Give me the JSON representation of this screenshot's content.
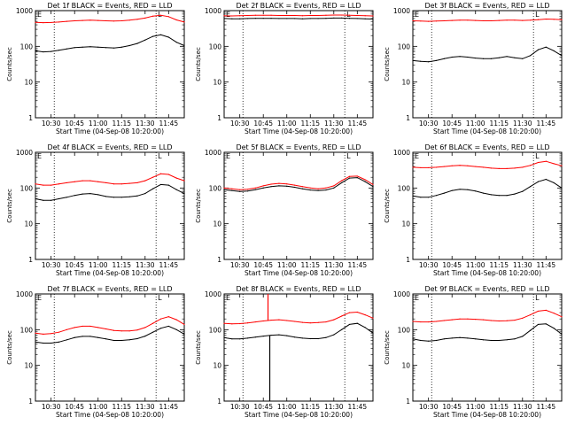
{
  "colors": {
    "events": "#000000",
    "lld": "#ff0000",
    "axis": "#000000"
  },
  "chart_data": [
    {
      "type": "line",
      "title": "Det 1f BLACK = Events, RED = LLD",
      "xlabel": "Start Time (04-Sep-08 10:20:00)",
      "ylabel": "Counts/sec",
      "x": [
        "10:20",
        "10:25",
        "10:30",
        "10:35",
        "10:40",
        "10:45",
        "10:50",
        "10:55",
        "11:00",
        "11:05",
        "11:10",
        "11:15",
        "11:20",
        "11:25",
        "11:30",
        "11:35",
        "11:40",
        "11:45",
        "11:50",
        "11:55"
      ],
      "x_ticks": [
        "10:30",
        "10:45",
        "11:00",
        "11:15",
        "11:30",
        "11:45"
      ],
      "y_scale": "log",
      "ylim": [
        1,
        1000
      ],
      "y_ticks": [
        "1",
        "10",
        "100",
        "1000"
      ],
      "vlines": [
        "10:32",
        "11:37"
      ],
      "legend": "E, L markers top",
      "series": [
        {
          "name": "BLACK = Events",
          "values": [
            75,
            70,
            72,
            78,
            85,
            92,
            95,
            98,
            95,
            92,
            90,
            95,
            105,
            120,
            150,
            190,
            210,
            180,
            130,
            105
          ]
        },
        {
          "name": "RED = LLD",
          "values": [
            470,
            460,
            465,
            480,
            500,
            520,
            530,
            540,
            530,
            520,
            510,
            520,
            540,
            570,
            620,
            700,
            740,
            680,
            550,
            480
          ]
        }
      ]
    },
    {
      "type": "line",
      "title": "Det 2f BLACK = Events, RED = LLD",
      "xlabel": "Start Time (04-Sep-08 10:20:00)",
      "ylabel": "Counts/sec",
      "x": [
        "10:20",
        "10:25",
        "10:30",
        "10:35",
        "10:40",
        "10:45",
        "10:50",
        "10:55",
        "11:00",
        "11:05",
        "11:10",
        "11:15",
        "11:20",
        "11:25",
        "11:30",
        "11:35",
        "11:40",
        "11:45",
        "11:50",
        "11:55"
      ],
      "x_ticks": [
        "10:30",
        "10:45",
        "11:00",
        "11:15",
        "11:30",
        "11:45"
      ],
      "y_scale": "log",
      "ylim": [
        1,
        1000
      ],
      "y_ticks": [
        "1",
        "10",
        "100",
        "1000"
      ],
      "vlines": [
        "10:32",
        "11:37"
      ],
      "legend": "E, L markers top",
      "series": [
        {
          "name": "BLACK = Events",
          "values": [
            600,
            590,
            590,
            600,
            610,
            610,
            610,
            600,
            600,
            600,
            590,
            600,
            600,
            610,
            620,
            620,
            610,
            600,
            590,
            580
          ]
        },
        {
          "name": "RED = LLD",
          "values": [
            720,
            710,
            720,
            730,
            740,
            740,
            740,
            730,
            730,
            730,
            720,
            730,
            730,
            740,
            750,
            750,
            740,
            730,
            720,
            710
          ]
        }
      ]
    },
    {
      "type": "line",
      "title": "Det 3f BLACK = Events, RED = LLD",
      "xlabel": "Start Time (04-Sep-08 10:20:00)",
      "ylabel": "Counts/sec",
      "x": [
        "10:20",
        "10:25",
        "10:30",
        "10:35",
        "10:40",
        "10:45",
        "10:50",
        "10:55",
        "11:00",
        "11:05",
        "11:10",
        "11:15",
        "11:20",
        "11:25",
        "11:30",
        "11:35",
        "11:40",
        "11:45",
        "11:50",
        "11:55"
      ],
      "x_ticks": [
        "10:30",
        "10:45",
        "11:00",
        "11:15",
        "11:30",
        "11:45"
      ],
      "y_scale": "log",
      "ylim": [
        1,
        1000
      ],
      "y_ticks": [
        "1",
        "10",
        "100",
        "1000"
      ],
      "vlines": [
        "10:32",
        "11:37"
      ],
      "legend": "E, L markers top",
      "series": [
        {
          "name": "BLACK = Events",
          "values": [
            40,
            38,
            37,
            40,
            45,
            50,
            52,
            50,
            47,
            45,
            45,
            48,
            52,
            48,
            45,
            55,
            80,
            95,
            75,
            55
          ]
        },
        {
          "name": "RED = LLD",
          "values": [
            520,
            510,
            500,
            510,
            520,
            530,
            540,
            540,
            530,
            520,
            520,
            530,
            540,
            540,
            530,
            540,
            560,
            580,
            570,
            560
          ]
        }
      ]
    },
    {
      "type": "line",
      "title": "Det 4f BLACK = Events, RED = LLD",
      "xlabel": "Start Time (04-Sep-08 10:20:00)",
      "ylabel": "Counts/sec",
      "x": [
        "10:20",
        "10:25",
        "10:30",
        "10:35",
        "10:40",
        "10:45",
        "10:50",
        "10:55",
        "11:00",
        "11:05",
        "11:10",
        "11:15",
        "11:20",
        "11:25",
        "11:30",
        "11:35",
        "11:40",
        "11:45",
        "11:50",
        "11:55"
      ],
      "x_ticks": [
        "10:30",
        "10:45",
        "11:00",
        "11:15",
        "11:30",
        "11:45"
      ],
      "y_scale": "log",
      "ylim": [
        1,
        1000
      ],
      "y_ticks": [
        "1",
        "10",
        "100",
        "1000"
      ],
      "vlines": [
        "10:32",
        "11:37"
      ],
      "legend": "E, L markers top",
      "series": [
        {
          "name": "BLACK = Events",
          "values": [
            50,
            45,
            45,
            50,
            55,
            62,
            68,
            70,
            65,
            58,
            55,
            55,
            57,
            60,
            70,
            95,
            125,
            120,
            90,
            70
          ]
        },
        {
          "name": "RED = LLD",
          "values": [
            130,
            120,
            120,
            130,
            140,
            150,
            160,
            160,
            150,
            140,
            130,
            130,
            135,
            140,
            160,
            200,
            250,
            240,
            190,
            160
          ]
        }
      ]
    },
    {
      "type": "line",
      "title": "Det 5f BLACK = Events, RED = LLD",
      "xlabel": "Start Time (04-Sep-08 10:20:00)",
      "ylabel": "Counts/sec",
      "x": [
        "10:20",
        "10:25",
        "10:30",
        "10:35",
        "10:40",
        "10:45",
        "10:50",
        "10:55",
        "11:00",
        "11:05",
        "11:10",
        "11:15",
        "11:20",
        "11:25",
        "11:30",
        "11:35",
        "11:40",
        "11:45",
        "11:50",
        "11:55"
      ],
      "x_ticks": [
        "10:30",
        "10:45",
        "11:00",
        "11:15",
        "11:30",
        "11:45"
      ],
      "y_scale": "log",
      "ylim": [
        1,
        1000
      ],
      "y_ticks": [
        "1",
        "10",
        "100",
        "1000"
      ],
      "vlines": [
        "10:32",
        "11:37"
      ],
      "legend": "E, L markers top",
      "series": [
        {
          "name": "BLACK = Events",
          "values": [
            90,
            85,
            80,
            82,
            90,
            100,
            110,
            115,
            112,
            105,
            95,
            88,
            85,
            88,
            100,
            140,
            190,
            195,
            150,
            110
          ]
        },
        {
          "name": "RED = LLD",
          "values": [
            100,
            95,
            90,
            92,
            100,
            115,
            128,
            135,
            130,
            120,
            110,
            100,
            95,
            100,
            115,
            160,
            210,
            215,
            170,
            125
          ]
        }
      ]
    },
    {
      "type": "line",
      "title": "Det 6f BLACK = Events, RED = LLD",
      "xlabel": "Start Time (04-Sep-08 10:20:00)",
      "ylabel": "Counts/sec",
      "x": [
        "10:20",
        "10:25",
        "10:30",
        "10:35",
        "10:40",
        "10:45",
        "10:50",
        "10:55",
        "11:00",
        "11:05",
        "11:10",
        "11:15",
        "11:20",
        "11:25",
        "11:30",
        "11:35",
        "11:40",
        "11:45",
        "11:50",
        "11:55"
      ],
      "x_ticks": [
        "10:30",
        "10:45",
        "11:00",
        "11:15",
        "11:30",
        "11:45"
      ],
      "y_scale": "log",
      "ylim": [
        1,
        1000
      ],
      "y_ticks": [
        "1",
        "10",
        "100",
        "1000"
      ],
      "vlines": [
        "10:32",
        "11:37"
      ],
      "legend": "E, L markers top",
      "series": [
        {
          "name": "BLACK = Events",
          "values": [
            60,
            55,
            55,
            62,
            72,
            85,
            92,
            90,
            82,
            72,
            65,
            62,
            62,
            68,
            80,
            110,
            150,
            175,
            140,
            100
          ]
        },
        {
          "name": "RED = LLD",
          "values": [
            380,
            370,
            370,
            380,
            400,
            420,
            430,
            420,
            400,
            380,
            360,
            350,
            350,
            360,
            380,
            430,
            520,
            560,
            480,
            420
          ]
        }
      ]
    },
    {
      "type": "line",
      "title": "Det 7f BLACK = Events, RED = LLD",
      "xlabel": "Start Time (04-Sep-08 10:20:00)",
      "ylabel": "Counts/sec",
      "x": [
        "10:20",
        "10:25",
        "10:30",
        "10:35",
        "10:40",
        "10:45",
        "10:50",
        "10:55",
        "11:00",
        "11:05",
        "11:10",
        "11:15",
        "11:20",
        "11:25",
        "11:30",
        "11:35",
        "11:40",
        "11:45",
        "11:50",
        "11:55"
      ],
      "x_ticks": [
        "10:30",
        "10:45",
        "11:00",
        "11:15",
        "11:30",
        "11:45"
      ],
      "y_scale": "log",
      "ylim": [
        1,
        1000
      ],
      "y_ticks": [
        "1",
        "10",
        "100",
        "1000"
      ],
      "vlines": [
        "10:32",
        "11:37"
      ],
      "legend": "E, L markers top",
      "series": [
        {
          "name": "BLACK = Events",
          "values": [
            45,
            42,
            42,
            45,
            52,
            60,
            65,
            65,
            60,
            55,
            50,
            50,
            52,
            56,
            66,
            85,
            110,
            125,
            100,
            75
          ]
        },
        {
          "name": "RED = LLD",
          "values": [
            80,
            75,
            78,
            85,
            100,
            115,
            125,
            125,
            115,
            105,
            95,
            92,
            92,
            98,
            115,
            150,
            200,
            230,
            190,
            140
          ]
        }
      ]
    },
    {
      "type": "line",
      "title": "Det 8f BLACK = Events, RED = LLD",
      "xlabel": "Start Time (04-Sep-08 10:20:00)",
      "ylabel": "Counts/sec",
      "x": [
        "10:20",
        "10:25",
        "10:30",
        "10:35",
        "10:40",
        "10:45",
        "10:50",
        "10:55",
        "11:00",
        "11:05",
        "11:10",
        "11:15",
        "11:20",
        "11:25",
        "11:30",
        "11:35",
        "11:40",
        "11:45",
        "11:50",
        "11:55"
      ],
      "x_ticks": [
        "10:30",
        "10:45",
        "11:00",
        "11:15",
        "11:30",
        "11:45"
      ],
      "y_scale": "log",
      "ylim": [
        1,
        1000
      ],
      "y_ticks": [
        "1",
        "10",
        "100",
        "1000"
      ],
      "vlines": [
        "10:32",
        "11:37"
      ],
      "legend": "E, L markers top",
      "spike": {
        "time": "10:48",
        "lld_peak": 1000,
        "events_min": 1
      },
      "series": [
        {
          "name": "BLACK = Events",
          "values": [
            60,
            55,
            55,
            58,
            62,
            66,
            70,
            72,
            68,
            62,
            58,
            56,
            56,
            60,
            72,
            100,
            140,
            150,
            115,
            80
          ]
        },
        {
          "name": "RED = LLD",
          "values": [
            150,
            145,
            148,
            155,
            165,
            175,
            185,
            190,
            180,
            170,
            160,
            155,
            158,
            165,
            190,
            240,
            300,
            310,
            260,
            210
          ]
        }
      ]
    },
    {
      "type": "line",
      "title": "Det 9f BLACK = Events, RED = LLD",
      "xlabel": "Start Time (04-Sep-08 10:20:00)",
      "ylabel": "Counts/sec",
      "x": [
        "10:20",
        "10:25",
        "10:30",
        "10:35",
        "10:40",
        "10:45",
        "10:50",
        "10:55",
        "11:00",
        "11:05",
        "11:10",
        "11:15",
        "11:20",
        "11:25",
        "11:30",
        "11:35",
        "11:40",
        "11:45",
        "11:50",
        "11:55"
      ],
      "x_ticks": [
        "10:30",
        "10:45",
        "11:00",
        "11:15",
        "11:30",
        "11:45"
      ],
      "y_scale": "log",
      "ylim": [
        1,
        1000
      ],
      "y_ticks": [
        "1",
        "10",
        "100",
        "1000"
      ],
      "vlines": [
        "10:32",
        "11:37"
      ],
      "legend": "E, L markers top",
      "series": [
        {
          "name": "BLACK = Events",
          "values": [
            55,
            50,
            48,
            50,
            55,
            58,
            60,
            58,
            55,
            52,
            50,
            50,
            52,
            55,
            65,
            95,
            140,
            145,
            110,
            75
          ]
        },
        {
          "name": "RED = LLD",
          "values": [
            170,
            165,
            165,
            170,
            180,
            190,
            200,
            200,
            195,
            190,
            180,
            175,
            178,
            185,
            210,
            260,
            330,
            350,
            290,
            230
          ]
        }
      ]
    }
  ]
}
